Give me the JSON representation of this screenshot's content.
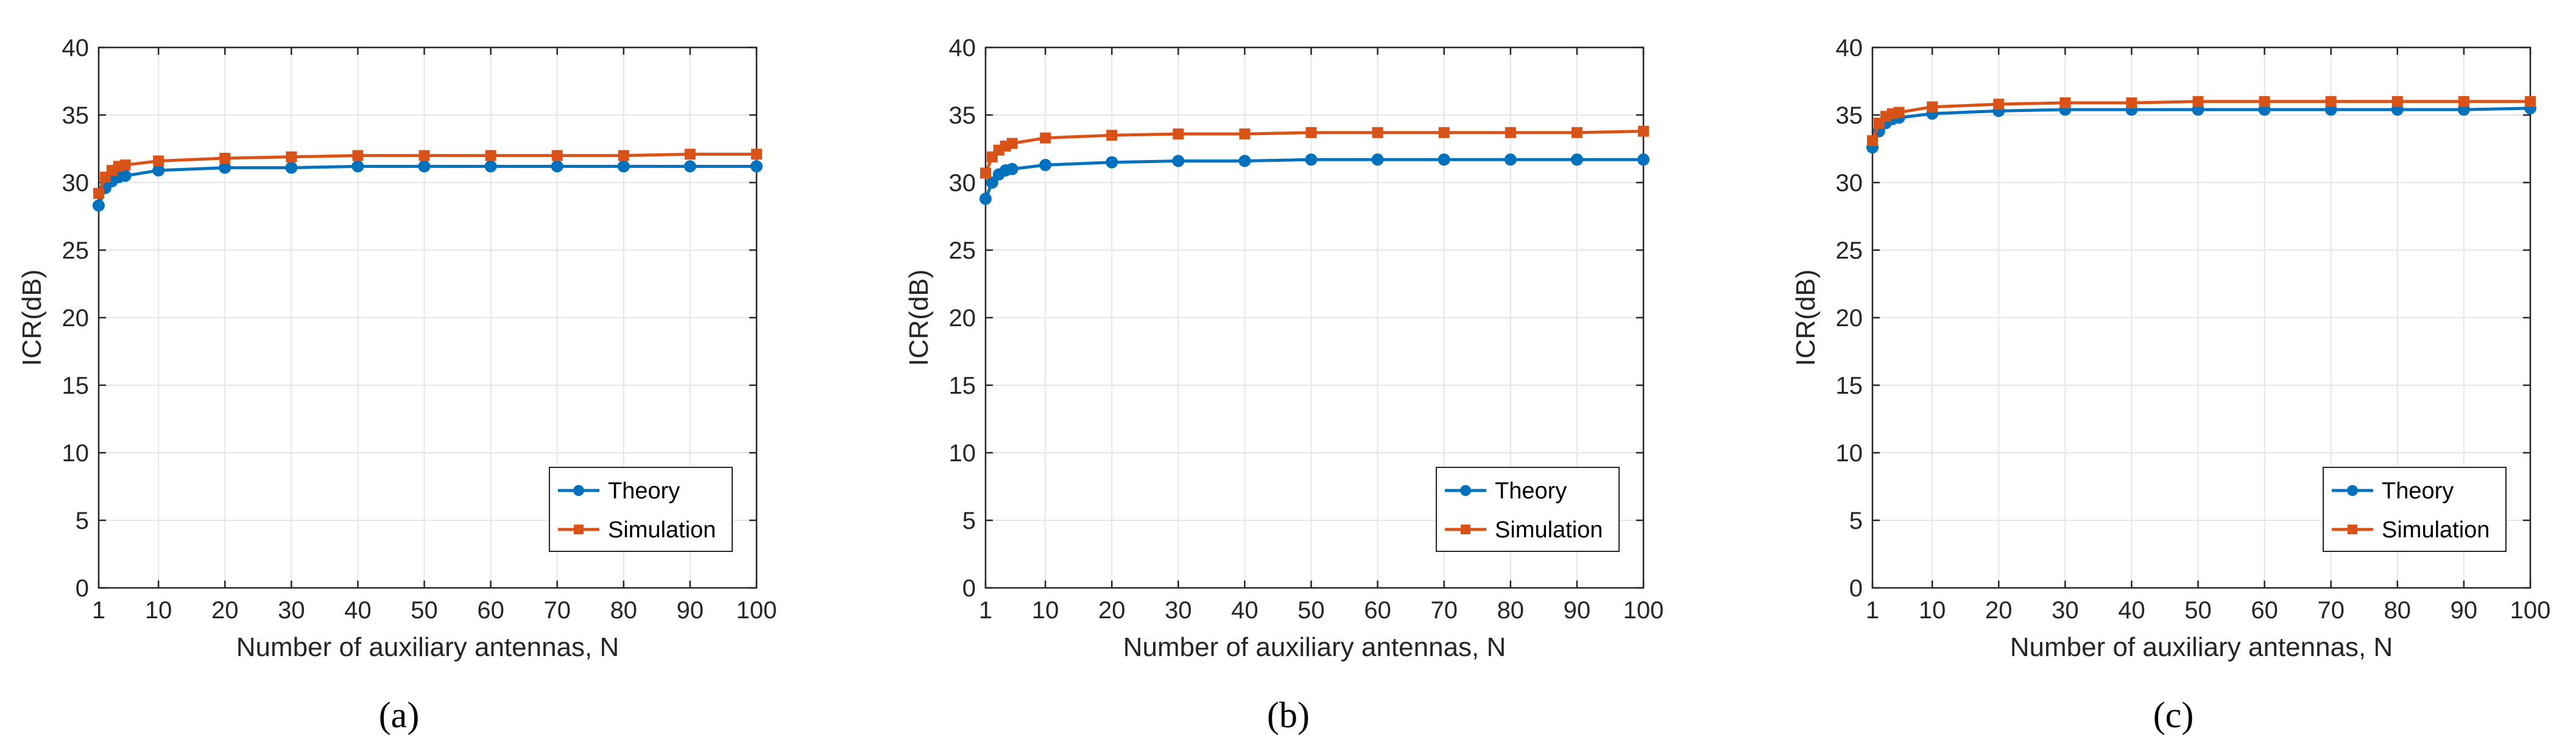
{
  "chart_data": [
    {
      "type": "line",
      "panel_label": "(a)",
      "xlabel": "Number of auxiliary antennas, N",
      "ylabel": "ICR(dB)",
      "xlim": [
        1,
        100
      ],
      "ylim": [
        0,
        40
      ],
      "xticks": [
        1,
        10,
        20,
        30,
        40,
        50,
        60,
        70,
        80,
        90,
        100
      ],
      "yticks": [
        0,
        5,
        10,
        15,
        20,
        25,
        30,
        35,
        40
      ],
      "grid": true,
      "legend_position": "bottom-right",
      "x": [
        1,
        2,
        3,
        4,
        5,
        10,
        20,
        30,
        40,
        50,
        60,
        70,
        80,
        90,
        100
      ],
      "series": [
        {
          "name": "Theory",
          "color": "#0072BD",
          "marker": "circle",
          "values": [
            28.3,
            29.6,
            30.1,
            30.4,
            30.5,
            30.9,
            31.1,
            31.1,
            31.2,
            31.2,
            31.2,
            31.2,
            31.2,
            31.2,
            31.2
          ]
        },
        {
          "name": "Simulation",
          "color": "#D95319",
          "marker": "square",
          "values": [
            29.2,
            30.4,
            30.9,
            31.2,
            31.3,
            31.6,
            31.8,
            31.9,
            32.0,
            32.0,
            32.0,
            32.0,
            32.0,
            32.1,
            32.1
          ]
        }
      ]
    },
    {
      "type": "line",
      "panel_label": "(b)",
      "xlabel": "Number of auxiliary antennas, N",
      "ylabel": "ICR(dB)",
      "xlim": [
        1,
        100
      ],
      "ylim": [
        0,
        40
      ],
      "xticks": [
        1,
        10,
        20,
        30,
        40,
        50,
        60,
        70,
        80,
        90,
        100
      ],
      "yticks": [
        0,
        5,
        10,
        15,
        20,
        25,
        30,
        35,
        40
      ],
      "grid": true,
      "legend_position": "bottom-right",
      "x": [
        1,
        2,
        3,
        4,
        5,
        10,
        20,
        30,
        40,
        50,
        60,
        70,
        80,
        90,
        100
      ],
      "series": [
        {
          "name": "Theory",
          "color": "#0072BD",
          "marker": "circle",
          "values": [
            28.8,
            30.0,
            30.6,
            30.9,
            31.0,
            31.3,
            31.5,
            31.6,
            31.6,
            31.7,
            31.7,
            31.7,
            31.7,
            31.7,
            31.7
          ]
        },
        {
          "name": "Simulation",
          "color": "#D95319",
          "marker": "square",
          "values": [
            30.7,
            31.9,
            32.4,
            32.7,
            32.9,
            33.3,
            33.5,
            33.6,
            33.6,
            33.7,
            33.7,
            33.7,
            33.7,
            33.7,
            33.8
          ]
        }
      ]
    },
    {
      "type": "line",
      "panel_label": "(c)",
      "xlabel": "Number of auxiliary antennas, N",
      "ylabel": "ICR(dB)",
      "xlim": [
        1,
        100
      ],
      "ylim": [
        0,
        40
      ],
      "xticks": [
        1,
        10,
        20,
        30,
        40,
        50,
        60,
        70,
        80,
        90,
        100
      ],
      "yticks": [
        0,
        5,
        10,
        15,
        20,
        25,
        30,
        35,
        40
      ],
      "grid": true,
      "legend_position": "bottom-right",
      "x": [
        1,
        2,
        3,
        4,
        5,
        10,
        20,
        30,
        40,
        50,
        60,
        70,
        80,
        90,
        100
      ],
      "series": [
        {
          "name": "Theory",
          "color": "#0072BD",
          "marker": "circle",
          "values": [
            32.6,
            33.8,
            34.4,
            34.7,
            34.8,
            35.1,
            35.3,
            35.4,
            35.4,
            35.4,
            35.4,
            35.4,
            35.4,
            35.4,
            35.5
          ]
        },
        {
          "name": "Simulation",
          "color": "#D95319",
          "marker": "square",
          "values": [
            33.1,
            34.4,
            34.9,
            35.1,
            35.2,
            35.6,
            35.8,
            35.9,
            35.9,
            36.0,
            36.0,
            36.0,
            36.0,
            36.0,
            36.0
          ]
        }
      ]
    }
  ]
}
